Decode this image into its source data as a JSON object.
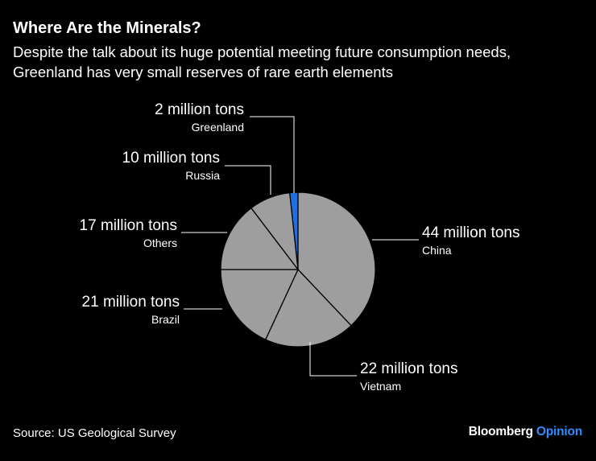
{
  "header": {
    "title": "Where Are the Minerals?",
    "subtitle": "Despite the talk about its huge potential meeting future consumption needs, Greenland has very small reserves of rare earth elements"
  },
  "footer": {
    "source": "Source: US Geological Survey",
    "brand_main": "Bloomberg",
    "brand_accent": "Opinion"
  },
  "colors": {
    "background": "#000000",
    "slice": "#9e9e9e",
    "highlight": "#1f6fe5",
    "slice_border": "#000000",
    "text": "#ffffff",
    "brand_accent": "#2f8cff"
  },
  "chart_data": {
    "type": "pie",
    "title": "Where Are the Minerals?",
    "unit": "million tons",
    "slices": [
      {
        "name": "Greenland",
        "value": 2,
        "label": "2 million tons",
        "highlight": true
      },
      {
        "name": "China",
        "value": 44,
        "label": "44 million tons",
        "highlight": false
      },
      {
        "name": "Vietnam",
        "value": 22,
        "label": "22 million tons",
        "highlight": false
      },
      {
        "name": "Brazil",
        "value": 21,
        "label": "21 million tons",
        "highlight": false
      },
      {
        "name": "Others",
        "value": 17,
        "label": "17 million tons",
        "highlight": false
      },
      {
        "name": "Russia",
        "value": 10,
        "label": "10 million tons",
        "highlight": false
      }
    ]
  }
}
